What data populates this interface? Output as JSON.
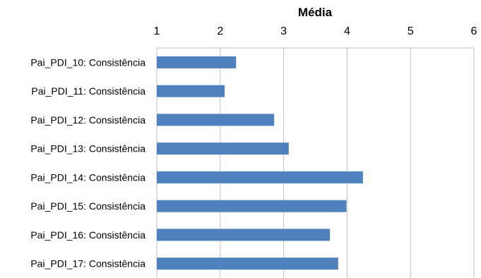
{
  "chart_data": {
    "type": "bar",
    "orientation": "horizontal",
    "title": "",
    "xlabel": "Média",
    "ylabel": "",
    "xlabel_position": "top",
    "xlim": [
      1,
      6
    ],
    "xticks": [
      1,
      2,
      3,
      4,
      5,
      6
    ],
    "grid": true,
    "bar_color": "#4f81bd",
    "categories": [
      "Pai_PDI_10: Consistência",
      "Pai_PDI_11: Consistência",
      "Pai_PDI_12: Consistência",
      "Pai_PDI_13: Consistência",
      "Pai_PDI_14: Consistência",
      "Pai_PDI_15: Consistência",
      "Pai_PDI_16: Consistência",
      "Pai_PDI_17: Consistência"
    ],
    "values": [
      2.25,
      2.07,
      2.85,
      3.08,
      4.25,
      3.99,
      3.73,
      3.86
    ]
  }
}
